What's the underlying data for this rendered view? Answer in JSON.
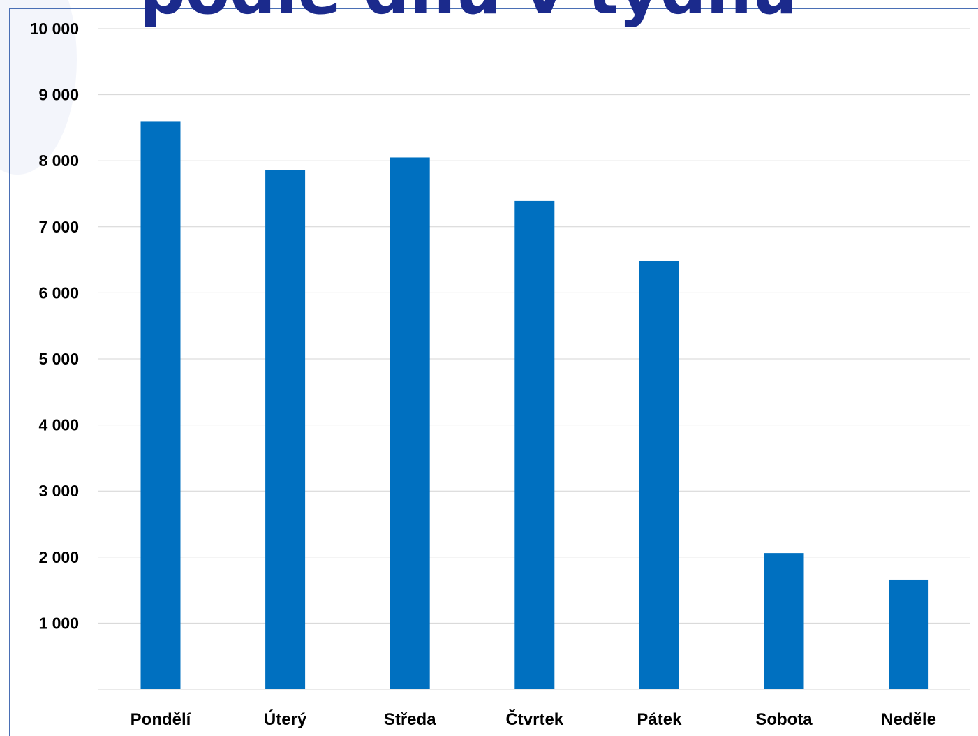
{
  "page": {
    "title_fragment": "podle dnů v týdnu"
  },
  "colors": {
    "bar": "#0070c0",
    "title": "#1b2a8c",
    "grid": "#d4d4d4"
  },
  "chart_data": {
    "type": "bar",
    "categories": [
      "Pondělí",
      "Úterý",
      "Středa",
      "Čtvrtek",
      "Pátek",
      "Sobota",
      "Neděle"
    ],
    "values": [
      8600,
      7860,
      8050,
      7390,
      6480,
      2060,
      1660
    ],
    "ylim": [
      0,
      10000
    ],
    "yticks": [
      1000,
      2000,
      3000,
      4000,
      5000,
      6000,
      7000,
      8000,
      9000,
      10000
    ],
    "ytick_labels": [
      "1 000",
      "2 000",
      "3 000",
      "4 000",
      "5 000",
      "6 000",
      "7 000",
      "8 000",
      "9 000",
      "10 000"
    ],
    "grid": true,
    "legend": "none",
    "xlabel": "",
    "ylabel": ""
  }
}
